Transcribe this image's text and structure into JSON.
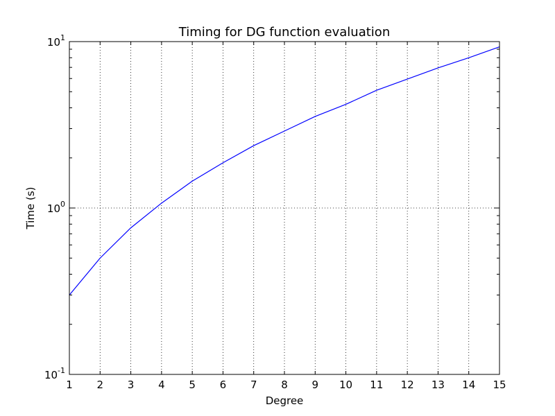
{
  "chart_data": {
    "type": "line",
    "title": "Timing for DG function evaluation",
    "xlabel": "Degree",
    "ylabel": "Time (s)",
    "xlim": [
      1,
      15
    ],
    "ylim": [
      0.1,
      10
    ],
    "yscale": "log",
    "grid": true,
    "x_ticks": [
      "1",
      "2",
      "3",
      "4",
      "5",
      "6",
      "7",
      "8",
      "9",
      "10",
      "11",
      "12",
      "13",
      "14",
      "15"
    ],
    "y_ticks": [
      {
        "base": "10",
        "exp": "-1",
        "value": 0.1
      },
      {
        "base": "10",
        "exp": "0",
        "value": 1
      },
      {
        "base": "10",
        "exp": "1",
        "value": 10
      }
    ],
    "series": [
      {
        "color": "#0000ff",
        "x": [
          1,
          2,
          3,
          4,
          5,
          6,
          7,
          8,
          9,
          10,
          11,
          12,
          13,
          14,
          15
        ],
        "y": [
          0.3,
          0.5,
          0.76,
          1.07,
          1.45,
          1.87,
          2.37,
          2.9,
          3.55,
          4.2,
          5.1,
          5.95,
          6.95,
          8.0,
          9.3
        ]
      }
    ]
  }
}
